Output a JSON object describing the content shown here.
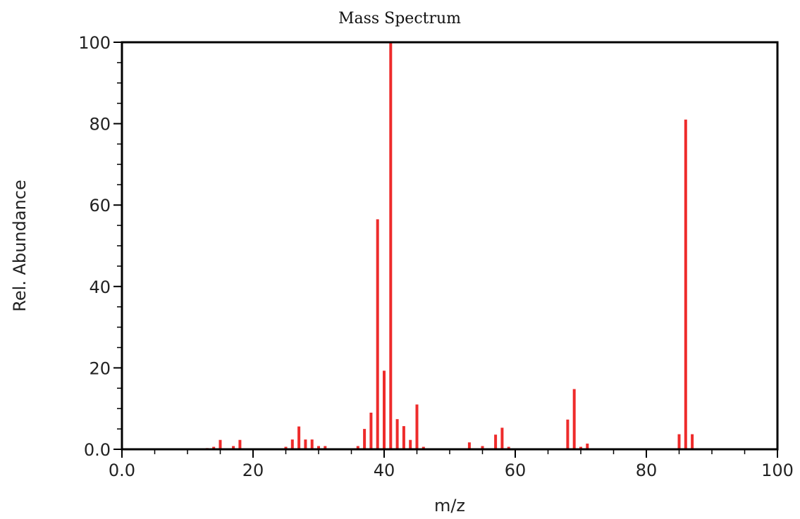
{
  "chart_data": {
    "type": "bar",
    "title": "Mass Spectrum",
    "xlabel": "m/z",
    "ylabel": "Rel. Abundance",
    "xlim": [
      0,
      100
    ],
    "ylim": [
      0,
      100
    ],
    "x_ticks": [
      0,
      20,
      40,
      60,
      80,
      100
    ],
    "x_tick_labels": [
      "0.0",
      "20",
      "40",
      "60",
      "80",
      "100"
    ],
    "y_ticks": [
      0,
      20,
      40,
      60,
      80,
      100
    ],
    "y_tick_labels": [
      "0.0",
      "20",
      "40",
      "60",
      "80",
      "100"
    ],
    "grid": false,
    "bar_color": "#ee2b2b",
    "axis_color": "#000000",
    "series": [
      {
        "x": [
          13,
          14,
          15,
          17,
          18,
          25,
          26,
          27,
          28,
          29,
          30,
          31,
          36,
          37,
          38,
          39,
          40,
          41,
          42,
          43,
          44,
          45,
          46,
          53,
          55,
          57,
          58,
          59,
          68,
          69,
          70,
          71,
          85,
          86,
          87
        ],
        "values": [
          0.3,
          0.6,
          2.3,
          0.8,
          2.3,
          0.6,
          2.4,
          5.6,
          2.4,
          2.4,
          0.8,
          0.8,
          0.8,
          5.0,
          9.0,
          56.5,
          19.3,
          100,
          7.4,
          5.7,
          2.3,
          11.0,
          0.6,
          1.7,
          0.8,
          3.6,
          5.3,
          0.6,
          7.3,
          14.8,
          0.6,
          1.4,
          3.7,
          81.0,
          3.7
        ]
      }
    ]
  }
}
